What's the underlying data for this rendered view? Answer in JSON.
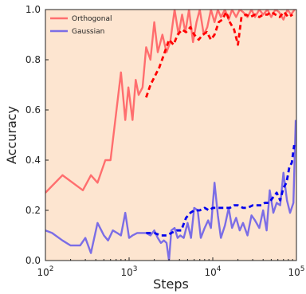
{
  "chart_data": {
    "type": "line",
    "title": "",
    "xlabel": "Steps",
    "ylabel": "Accuracy",
    "xscale": "log",
    "xlim": [
      100,
      100000
    ],
    "ylim": [
      0.0,
      1.0
    ],
    "xticks": [
      {
        "value": 100,
        "base": "10",
        "exp": "2"
      },
      {
        "value": 1000,
        "base": "10",
        "exp": "3"
      },
      {
        "value": 10000,
        "base": "10",
        "exp": "4"
      },
      {
        "value": 100000,
        "base": "10",
        "exp": "5"
      }
    ],
    "yticks": [
      "0.0",
      "0.2",
      "0.4",
      "0.6",
      "0.8",
      "1.0"
    ],
    "grid": false,
    "legend_position": "top-left",
    "background": "#fde5d0",
    "series": [
      {
        "name": "Orthogonal",
        "color": "#ff6e6e",
        "style": "solid",
        "x": [
          100,
          160,
          280,
          350,
          420,
          520,
          600,
          800,
          900,
          980,
          1100,
          1200,
          1300,
          1450,
          1600,
          1800,
          2000,
          2200,
          2500,
          2800,
          3100,
          3500,
          3900,
          4300,
          4700,
          5200,
          5800,
          6400,
          7000,
          7800,
          8600,
          9500,
          10500,
          11500,
          12500,
          14000,
          15500,
          17000,
          19000,
          21000,
          23000,
          26000,
          29000,
          32000,
          36000,
          40000,
          45000,
          50000,
          56000,
          62000,
          70000,
          78000,
          86000,
          95000
        ],
        "y": [
          0.27,
          0.34,
          0.28,
          0.34,
          0.31,
          0.4,
          0.4,
          0.75,
          0.56,
          0.69,
          0.56,
          0.72,
          0.66,
          0.69,
          0.85,
          0.8,
          0.95,
          0.83,
          0.9,
          0.83,
          0.87,
          1.0,
          0.9,
          0.98,
          0.91,
          1.0,
          0.87,
          0.95,
          1.0,
          0.9,
          0.93,
          1.0,
          0.95,
          1.0,
          0.97,
          1.0,
          0.96,
          1.0,
          0.97,
          1.0,
          0.99,
          0.97,
          1.0,
          0.97,
          1.0,
          0.98,
          1.0,
          0.97,
          1.0,
          0.99,
          0.96,
          1.0,
          0.98,
          1.0
        ]
      },
      {
        "name": "",
        "color": "#ff0000",
        "style": "dashed",
        "x": [
          1600,
          1800,
          2000,
          2300,
          2600,
          3000,
          3400,
          3800,
          4300,
          4800,
          5400,
          6000,
          6800,
          7600,
          8500,
          9500,
          10500,
          11800,
          13000,
          14500,
          16000,
          18000,
          20000,
          22000,
          25000,
          28000,
          32000,
          36000,
          40000,
          45000,
          50000,
          56000,
          63000,
          71000,
          80000,
          90000
        ],
        "y": [
          0.65,
          0.7,
          0.73,
          0.77,
          0.82,
          0.88,
          0.86,
          0.9,
          0.92,
          0.91,
          0.93,
          0.9,
          0.88,
          0.9,
          0.91,
          0.88,
          0.9,
          0.95,
          0.96,
          0.99,
          0.95,
          0.92,
          0.86,
          0.97,
          0.98,
          0.97,
          0.98,
          0.97,
          0.98,
          0.98,
          0.99,
          0.98,
          0.97,
          0.99,
          0.97,
          0.98
        ]
      },
      {
        "name": "Gaussian",
        "color": "#7b6de6",
        "style": "solid",
        "x": [
          100,
          120,
          160,
          200,
          260,
          300,
          350,
          420,
          500,
          560,
          640,
          720,
          800,
          900,
          1000,
          1100,
          1250,
          1400,
          1600,
          1800,
          2000,
          2200,
          2400,
          2600,
          2800,
          3000,
          3200,
          3500,
          3800,
          4100,
          4500,
          5000,
          5500,
          6000,
          6600,
          7200,
          8000,
          8800,
          9500,
          10500,
          11500,
          12500,
          14000,
          15500,
          17000,
          19000,
          21000,
          23000,
          26000,
          29000,
          32000,
          36000,
          40000,
          44000,
          48000,
          53000,
          58000,
          64000,
          70000,
          77000,
          84000,
          92000,
          98000
        ],
        "y": [
          0.12,
          0.11,
          0.08,
          0.06,
          0.06,
          0.09,
          0.03,
          0.15,
          0.1,
          0.08,
          0.12,
          0.11,
          0.1,
          0.19,
          0.09,
          0.1,
          0.11,
          0.11,
          0.11,
          0.1,
          0.12,
          0.09,
          0.07,
          0.08,
          0.07,
          0.0,
          0.12,
          0.13,
          0.09,
          0.1,
          0.09,
          0.15,
          0.09,
          0.21,
          0.2,
          0.09,
          0.13,
          0.16,
          0.13,
          0.31,
          0.18,
          0.09,
          0.14,
          0.21,
          0.13,
          0.17,
          0.12,
          0.15,
          0.1,
          0.18,
          0.16,
          0.13,
          0.2,
          0.12,
          0.28,
          0.19,
          0.23,
          0.22,
          0.35,
          0.24,
          0.19,
          0.23,
          0.56
        ]
      },
      {
        "name": "",
        "color": "#0000ee",
        "style": "dashed",
        "x": [
          1600,
          2000,
          2400,
          2800,
          3200,
          3700,
          4200,
          4800,
          5400,
          6000,
          7000,
          8000,
          9000,
          10000,
          12000,
          14000,
          16000,
          18000,
          20000,
          23000,
          26000,
          30000,
          34000,
          38000,
          42000,
          47000,
          52000,
          58000,
          64000,
          70000,
          76000,
          82000,
          88000,
          94000
        ],
        "y": [
          0.11,
          0.11,
          0.1,
          0.1,
          0.11,
          0.12,
          0.12,
          0.17,
          0.19,
          0.2,
          0.2,
          0.21,
          0.2,
          0.21,
          0.21,
          0.21,
          0.21,
          0.22,
          0.22,
          0.21,
          0.21,
          0.22,
          0.22,
          0.22,
          0.23,
          0.23,
          0.25,
          0.27,
          0.24,
          0.29,
          0.31,
          0.37,
          0.39,
          0.46
        ]
      }
    ]
  }
}
